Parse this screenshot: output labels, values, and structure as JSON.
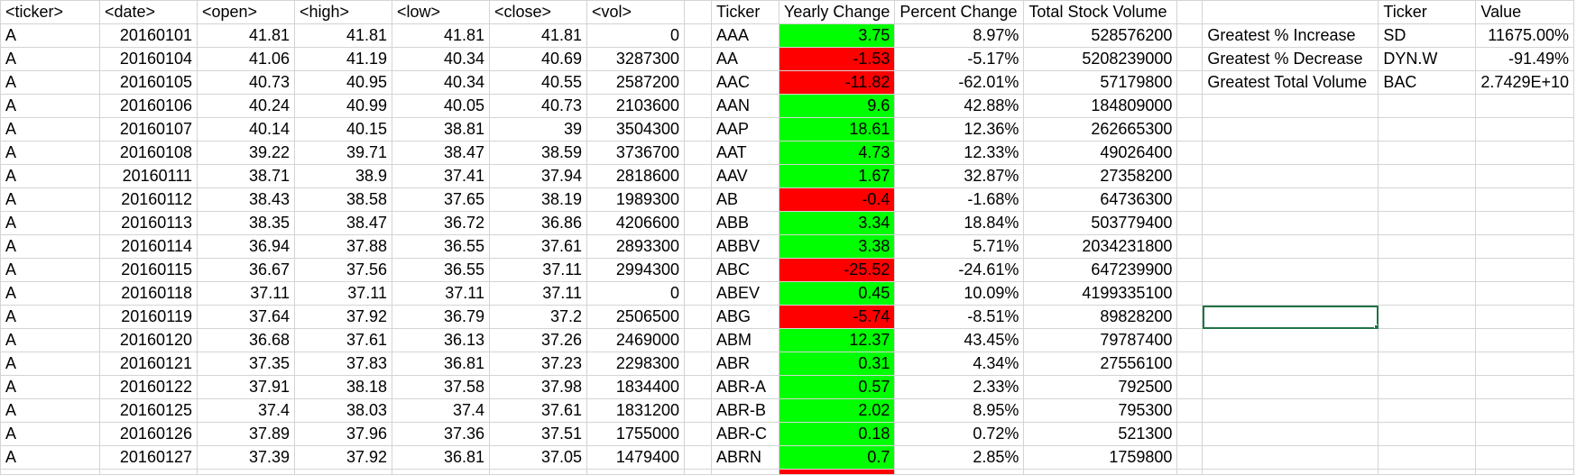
{
  "headers": {
    "ticker": "<ticker>",
    "date": "<date>",
    "open": "<open>",
    "high": "<high>",
    "low": "<low>",
    "close": "<close>",
    "vol": "<vol>",
    "summary_ticker": "Ticker",
    "yearly_change": "Yearly Change",
    "percent_change": "Percent Change",
    "total_volume": "Total Stock Volume",
    "greatest_ticker": "Ticker",
    "greatest_value": "Value"
  },
  "rows": [
    {
      "ticker": "A",
      "date": "20160101",
      "open": "41.81",
      "high": "41.81",
      "low": "41.81",
      "close": "41.81",
      "vol": "0",
      "sticker": "AAA",
      "change": "3.75",
      "pct": "8.97%",
      "total": "528576200",
      "positive": true
    },
    {
      "ticker": "A",
      "date": "20160104",
      "open": "41.06",
      "high": "41.19",
      "low": "40.34",
      "close": "40.69",
      "vol": "3287300",
      "sticker": "AA",
      "change": "-1.53",
      "pct": "-5.17%",
      "total": "5208239000",
      "positive": false
    },
    {
      "ticker": "A",
      "date": "20160105",
      "open": "40.73",
      "high": "40.95",
      "low": "40.34",
      "close": "40.55",
      "vol": "2587200",
      "sticker": "AAC",
      "change": "-11.82",
      "pct": "-62.01%",
      "total": "57179800",
      "positive": false
    },
    {
      "ticker": "A",
      "date": "20160106",
      "open": "40.24",
      "high": "40.99",
      "low": "40.05",
      "close": "40.73",
      "vol": "2103600",
      "sticker": "AAN",
      "change": "9.6",
      "pct": "42.88%",
      "total": "184809000",
      "positive": true
    },
    {
      "ticker": "A",
      "date": "20160107",
      "open": "40.14",
      "high": "40.15",
      "low": "38.81",
      "close": "39",
      "vol": "3504300",
      "sticker": "AAP",
      "change": "18.61",
      "pct": "12.36%",
      "total": "262665300",
      "positive": true
    },
    {
      "ticker": "A",
      "date": "20160108",
      "open": "39.22",
      "high": "39.71",
      "low": "38.47",
      "close": "38.59",
      "vol": "3736700",
      "sticker": "AAT",
      "change": "4.73",
      "pct": "12.33%",
      "total": "49026400",
      "positive": true
    },
    {
      "ticker": "A",
      "date": "20160111",
      "open": "38.71",
      "high": "38.9",
      "low": "37.41",
      "close": "37.94",
      "vol": "2818600",
      "sticker": "AAV",
      "change": "1.67",
      "pct": "32.87%",
      "total": "27358200",
      "positive": true
    },
    {
      "ticker": "A",
      "date": "20160112",
      "open": "38.43",
      "high": "38.58",
      "low": "37.65",
      "close": "38.19",
      "vol": "1989300",
      "sticker": "AB",
      "change": "-0.4",
      "pct": "-1.68%",
      "total": "64736300",
      "positive": false
    },
    {
      "ticker": "A",
      "date": "20160113",
      "open": "38.35",
      "high": "38.47",
      "low": "36.72",
      "close": "36.86",
      "vol": "4206600",
      "sticker": "ABB",
      "change": "3.34",
      "pct": "18.84%",
      "total": "503779400",
      "positive": true
    },
    {
      "ticker": "A",
      "date": "20160114",
      "open": "36.94",
      "high": "37.88",
      "low": "36.55",
      "close": "37.61",
      "vol": "2893300",
      "sticker": "ABBV",
      "change": "3.38",
      "pct": "5.71%",
      "total": "2034231800",
      "positive": true
    },
    {
      "ticker": "A",
      "date": "20160115",
      "open": "36.67",
      "high": "37.56",
      "low": "36.55",
      "close": "37.11",
      "vol": "2994300",
      "sticker": "ABC",
      "change": "-25.52",
      "pct": "-24.61%",
      "total": "647239900",
      "positive": false
    },
    {
      "ticker": "A",
      "date": "20160118",
      "open": "37.11",
      "high": "37.11",
      "low": "37.11",
      "close": "37.11",
      "vol": "0",
      "sticker": "ABEV",
      "change": "0.45",
      "pct": "10.09%",
      "total": "4199335100",
      "positive": true
    },
    {
      "ticker": "A",
      "date": "20160119",
      "open": "37.64",
      "high": "37.92",
      "low": "36.79",
      "close": "37.2",
      "vol": "2506500",
      "sticker": "ABG",
      "change": "-5.74",
      "pct": "-8.51%",
      "total": "89828200",
      "positive": false
    },
    {
      "ticker": "A",
      "date": "20160120",
      "open": "36.68",
      "high": "37.61",
      "low": "36.13",
      "close": "37.26",
      "vol": "2469000",
      "sticker": "ABM",
      "change": "12.37",
      "pct": "43.45%",
      "total": "79787400",
      "positive": true
    },
    {
      "ticker": "A",
      "date": "20160121",
      "open": "37.35",
      "high": "37.83",
      "low": "36.81",
      "close": "37.23",
      "vol": "2298300",
      "sticker": "ABR",
      "change": "0.31",
      "pct": "4.34%",
      "total": "27556100",
      "positive": true
    },
    {
      "ticker": "A",
      "date": "20160122",
      "open": "37.91",
      "high": "38.18",
      "low": "37.58",
      "close": "37.98",
      "vol": "1834400",
      "sticker": "ABR-A",
      "change": "0.57",
      "pct": "2.33%",
      "total": "792500",
      "positive": true
    },
    {
      "ticker": "A",
      "date": "20160125",
      "open": "37.4",
      "high": "38.03",
      "low": "37.4",
      "close": "37.61",
      "vol": "1831200",
      "sticker": "ABR-B",
      "change": "2.02",
      "pct": "8.95%",
      "total": "795300",
      "positive": true
    },
    {
      "ticker": "A",
      "date": "20160126",
      "open": "37.89",
      "high": "37.96",
      "low": "37.36",
      "close": "37.51",
      "vol": "1755000",
      "sticker": "ABR-C",
      "change": "0.18",
      "pct": "0.72%",
      "total": "521300",
      "positive": true
    },
    {
      "ticker": "A",
      "date": "20160127",
      "open": "37.39",
      "high": "37.92",
      "low": "36.81",
      "close": "37.05",
      "vol": "1479400",
      "sticker": "ABRN",
      "change": "0.7",
      "pct": "2.85%",
      "total": "1759800",
      "positive": true
    }
  ],
  "greatest": [
    {
      "label": "Greatest % Increase",
      "ticker": "SD",
      "value": "11675.00%"
    },
    {
      "label": "Greatest % Decrease",
      "ticker": "DYN.W",
      "value": "-91.49%"
    },
    {
      "label": "Greatest Total Volume",
      "ticker": "BAC",
      "value": "2.7429E+10"
    }
  ],
  "colors": {
    "positive": "#00ff00",
    "negative": "#ff0000",
    "selection": "#217346",
    "gridline": "#d4d4d4"
  }
}
